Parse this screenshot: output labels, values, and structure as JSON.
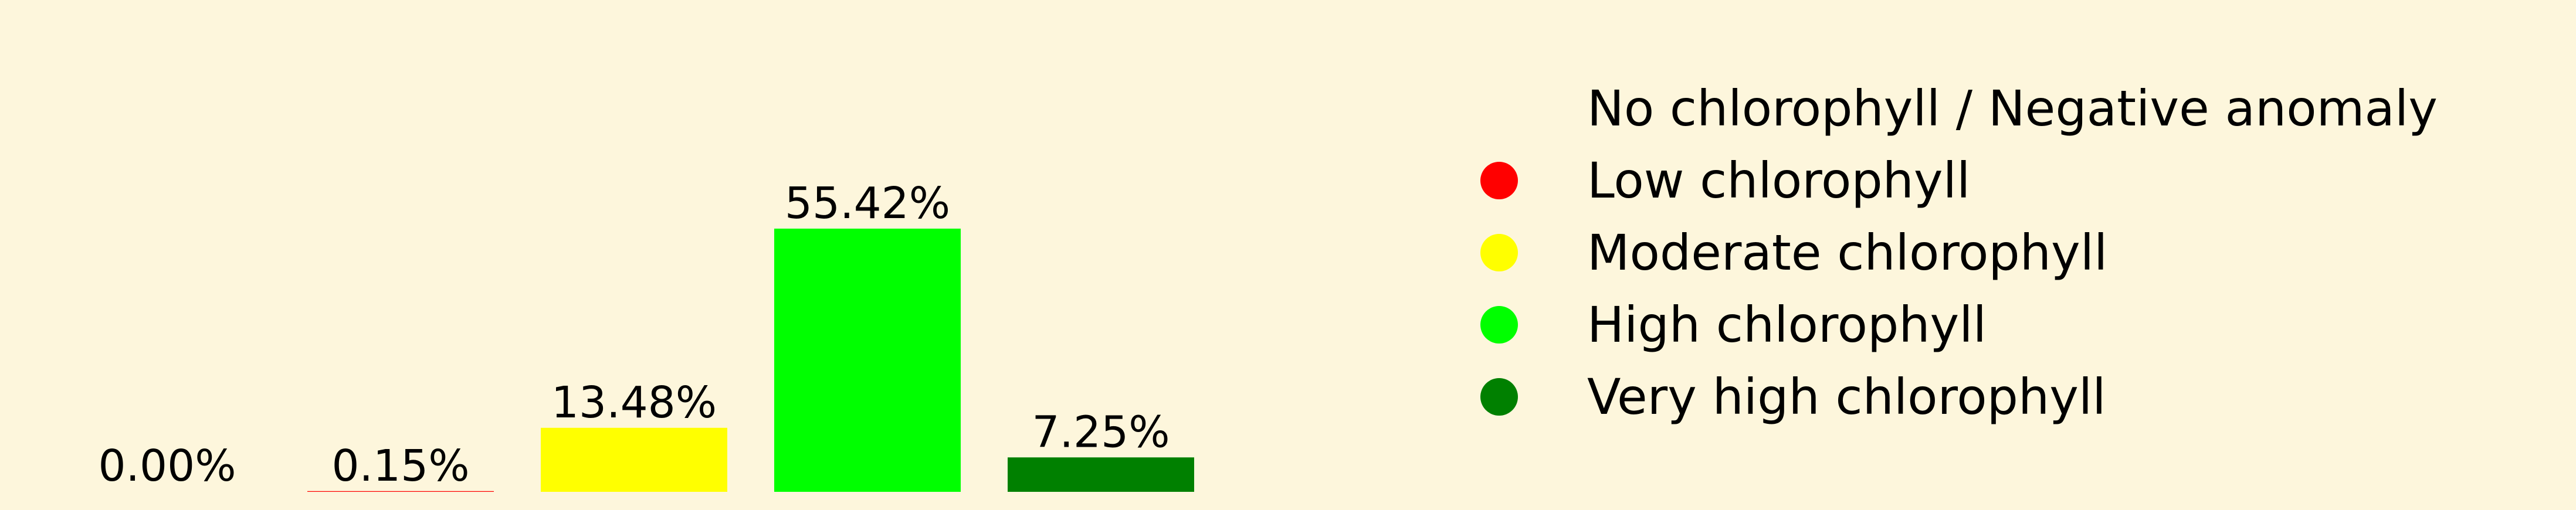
{
  "chart_data": {
    "type": "bar",
    "categories": [
      "No chlorophyll / Negative anomaly",
      "Low chlorophyll",
      "Moderate chlorophyll",
      "High chlorophyll",
      "Very high chlorophyll"
    ],
    "values": [
      0.0,
      0.15,
      13.48,
      55.42,
      7.25
    ],
    "value_labels": [
      "0.00%",
      "0.15%",
      "13.48%",
      "55.42%",
      "7.25%"
    ],
    "colors": [
      "#fdf6dc",
      "#ff0000",
      "#ffff00",
      "#00ff00",
      "#008000"
    ],
    "ylim": [
      0,
      60
    ],
    "grid": false,
    "legend": {
      "position": "right",
      "entries": [
        {
          "label": "No chlorophyll / Negative anomaly",
          "color": "#fdf6dc"
        },
        {
          "label": "Low chlorophyll",
          "color": "#ff0000"
        },
        {
          "label": "Moderate chlorophyll",
          "color": "#ffff00"
        },
        {
          "label": "High chlorophyll",
          "color": "#00ff00"
        },
        {
          "label": "Very high chlorophyll",
          "color": "#008000"
        }
      ]
    }
  }
}
